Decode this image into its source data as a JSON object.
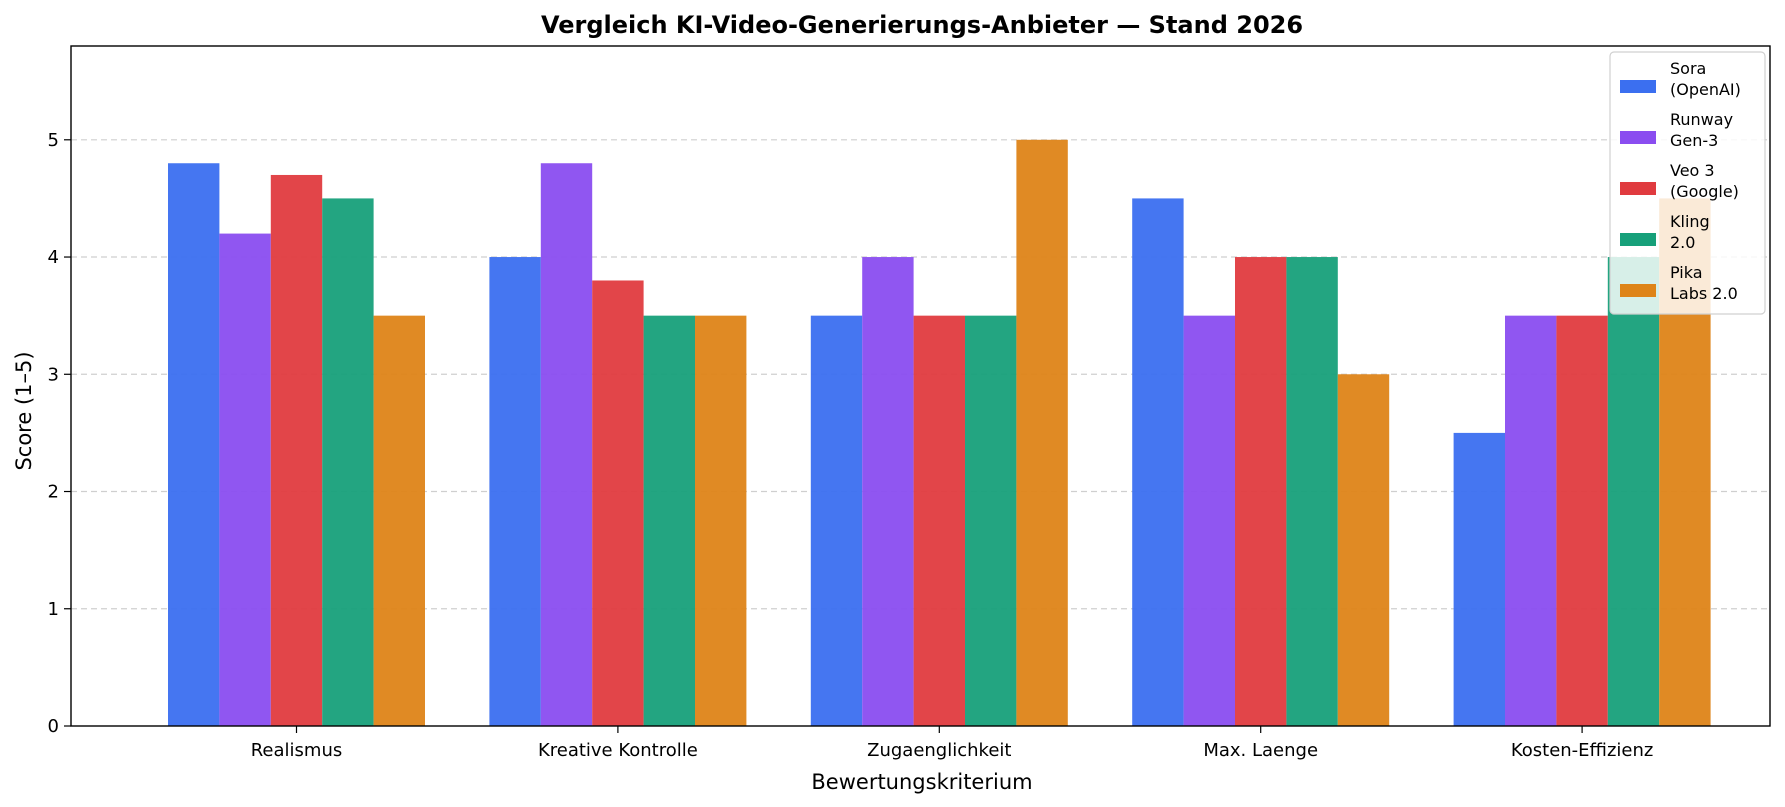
{
  "chart_data": {
    "type": "bar",
    "title": "Vergleich KI-Video-Generierungs-Anbieter — Stand 2026",
    "xlabel": "Bewertungskriterium",
    "ylabel": "Score (1–5)",
    "categories": [
      "Realismus",
      "Kreative Kontrolle",
      "Zugaenglichkeit",
      "Max. Laenge",
      "Kosten-Effizienz"
    ],
    "ylim": [
      0,
      5.8
    ],
    "yticks": [
      0,
      1,
      2,
      3,
      4,
      5
    ],
    "grid": "y-dashed",
    "legend_position": "top-right",
    "series": [
      {
        "name": "Sora\n(OpenAI)",
        "color": "#3b6ff0",
        "values": [
          4.8,
          4.0,
          3.5,
          4.5,
          2.5
        ]
      },
      {
        "name": "Runway\nGen-3",
        "color": "#8a4df0",
        "values": [
          4.2,
          4.8,
          4.0,
          3.5,
          3.5
        ]
      },
      {
        "name": "Veo 3\n(Google)",
        "color": "#e03b3f",
        "values": [
          4.7,
          3.8,
          3.5,
          4.0,
          3.5
        ]
      },
      {
        "name": "Kling\n2.0",
        "color": "#17a07a",
        "values": [
          4.5,
          3.5,
          3.5,
          4.0,
          4.0
        ]
      },
      {
        "name": "Pika\nLabs 2.0",
        "color": "#de8418",
        "values": [
          3.5,
          3.5,
          5.0,
          3.0,
          4.5
        ]
      }
    ]
  }
}
